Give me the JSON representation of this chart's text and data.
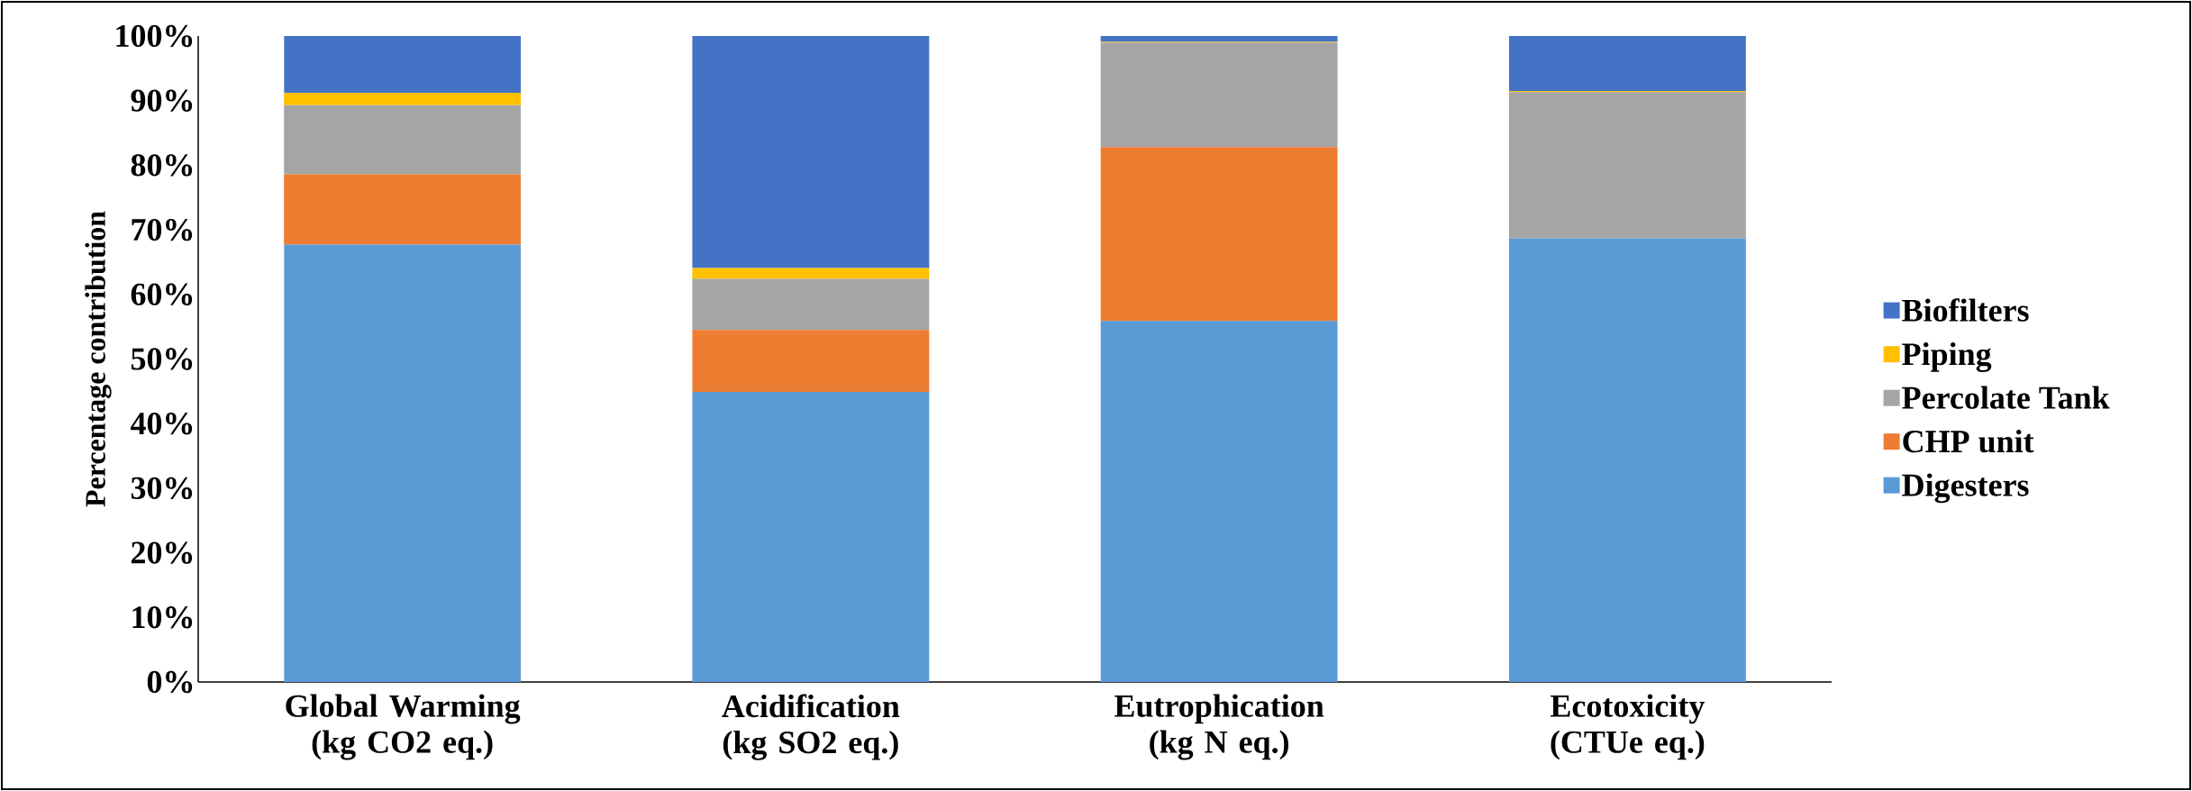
{
  "chart_data": {
    "type": "bar",
    "stacked": true,
    "ylabel": "Percentage contribution",
    "categories": [
      "Global Warming (kg CO2 eq.)",
      "Acidification (kg SO2 eq.)",
      "Eutrophication (kg N eq.)",
      "Ecotoxicity (CTUe eq.)"
    ],
    "series": [
      {
        "name": "Digesters",
        "color": "#5b9bd5",
        "values": [
          67.7,
          44.9,
          55.9,
          68.7
        ]
      },
      {
        "name": "CHP unit",
        "color": "#ed7d31",
        "values": [
          10.9,
          9.6,
          26.9,
          0
        ]
      },
      {
        "name": "Percolate Tank",
        "color": "#a5a5a5",
        "values": [
          10.7,
          7.9,
          16.2,
          22.6
        ]
      },
      {
        "name": "Piping",
        "color": "#ffc000",
        "values": [
          1.9,
          1.7,
          0.1,
          0.2
        ]
      },
      {
        "name": "Biofilters",
        "color": "#4472c4",
        "values": [
          8.8,
          35.9,
          0.9,
          8.5
        ]
      }
    ],
    "ylim": [
      0,
      100
    ],
    "yticks": [
      {
        "value": 0,
        "label": "0%"
      },
      {
        "value": 10,
        "label": "10%"
      },
      {
        "value": 20,
        "label": "20%"
      },
      {
        "value": 30,
        "label": "30%"
      },
      {
        "value": 40,
        "label": "40%"
      },
      {
        "value": 50,
        "label": "50%"
      },
      {
        "value": 60,
        "label": "60%"
      },
      {
        "value": 70,
        "label": "70%"
      },
      {
        "value": 80,
        "label": "80%"
      },
      {
        "value": 90,
        "label": "90%"
      },
      {
        "value": 100,
        "label": "100%"
      }
    ],
    "legend": "right"
  }
}
